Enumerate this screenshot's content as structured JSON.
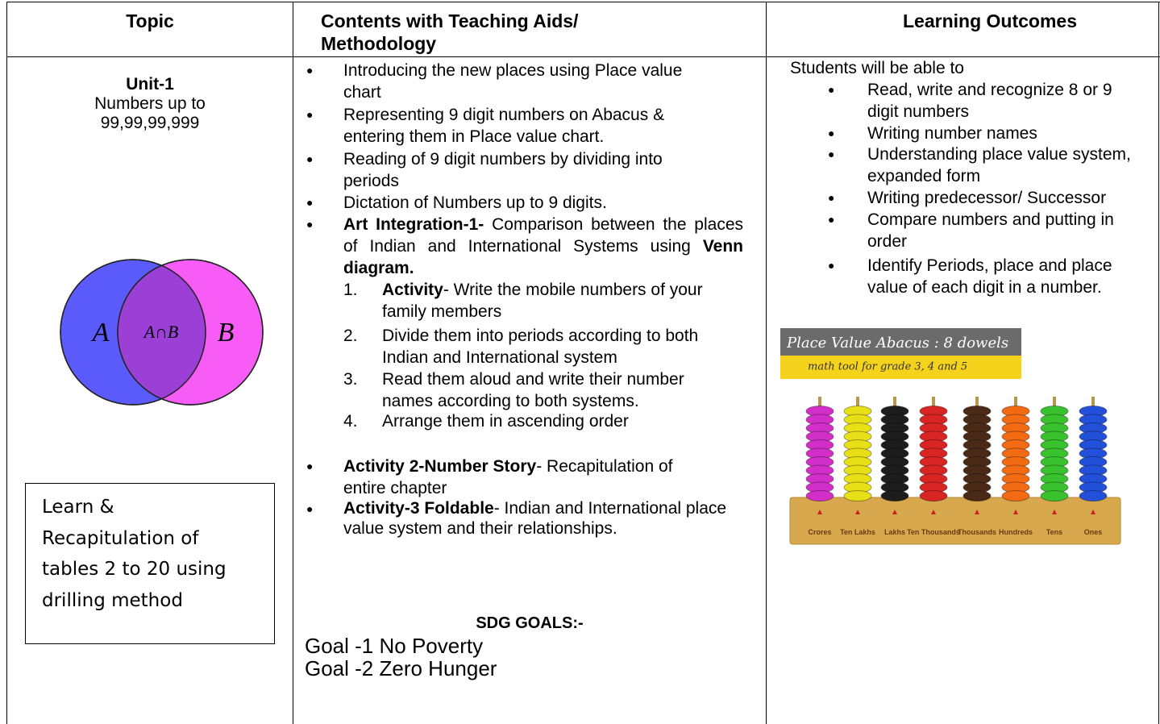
{
  "table": {
    "headers": [
      "Topic",
      "Contents with Teaching Aids/ Methodology",
      "Learning Outcomes"
    ],
    "topic": {
      "unit": "Unit-1",
      "title": "Numbers up to",
      "range": "99,99,99,999",
      "venn": {
        "a": "A",
        "ab": "A∩B",
        "b": "B"
      },
      "box": "Learn & Recapitulation of tables 2 to 20 using drilling method"
    },
    "contents": {
      "bullets": [
        "Introducing the new places using Place value chart",
        "Representing 9 digit numbers on Abacus & entering them in Place value chart.",
        "Reading of 9 digit numbers by dividing into periods",
        "Dictation of Numbers up to 9 digits."
      ],
      "art": {
        "bold": "Art Integration-1-",
        "text": "Comparison between the places of Indian and International Systems using",
        "bold2": "Venn diagram."
      },
      "steps": [
        {
          "num": "1.",
          "bold": "Activity",
          "text": "- Write the mobile numbers of your family members"
        },
        {
          "num": "2.",
          "text": "Divide them into periods according to both Indian and International system"
        },
        {
          "num": "3.",
          "text": "Read them aloud and write their number names according to both systems."
        },
        {
          "num": "4.",
          "text": "Arrange them in ascending order"
        }
      ],
      "activities": [
        {
          "bold": "Activity 2-Number Story",
          "text": "- Recapitulation of entire chapter"
        },
        {
          "bold": "Activity-3 Foldable",
          "text": "- Indian and International place value system and their relationships."
        }
      ],
      "sdg_title": "SDG GOALS:-",
      "goals": [
        "Goal -1 No Poverty",
        "Goal -2 Zero Hunger"
      ]
    },
    "outcomes": {
      "intro": "Students will be able to",
      "bullets": [
        "Read, write and recognize 8 or 9 digit numbers",
        "Writing number names",
        "Understanding place value system, expanded form",
        "Writing predecessor/ Successor",
        "Compare numbers and putting in order",
        "Identify Periods, place and place value of each digit in a number."
      ],
      "image": {
        "title": "Place Value Abacus : 8 dowels",
        "subtitle": "math tool for grade 3, 4 and 5",
        "labels": [
          "Crores",
          "Ten Lakhs",
          "Lakhs",
          "Ten Thousands",
          "Thousands",
          "Hundreds",
          "Tens",
          "Ones"
        ]
      }
    }
  }
}
